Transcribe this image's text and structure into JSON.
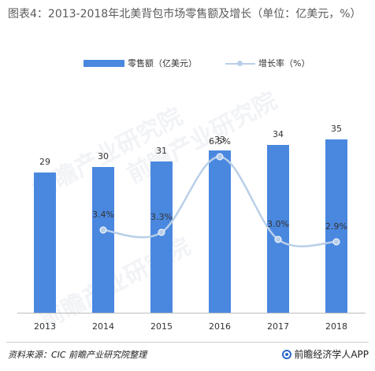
{
  "title": "图表4：2013-2018年北美背包市场零售额及增长（单位：亿美元，%）",
  "legend": {
    "bar_label": "零售额（亿美元）",
    "line_label": "增长率（%）"
  },
  "footer": {
    "source": "资料来源：CIC 前瞻产业研究院整理",
    "brand": "前瞻经济学人APP"
  },
  "watermarks": [
    "前瞻产业研究院",
    "前瞻产业研究院",
    "前瞻产业研究院"
  ],
  "colors": {
    "bar": "#4a88e0",
    "line": "#b9cfe8",
    "text": "#333333"
  },
  "chart_data": {
    "type": "bar",
    "categories": [
      "2013",
      "2014",
      "2015",
      "2016",
      "2017",
      "2018"
    ],
    "series": [
      {
        "name": "零售额（亿美元）",
        "type": "bar",
        "values": [
          29,
          30,
          31,
          33,
          34,
          35
        ],
        "labels": [
          "29",
          "30",
          "31",
          "33",
          "34",
          "35"
        ]
      },
      {
        "name": "增长率（%）",
        "type": "line",
        "smooth": true,
        "values": [
          null,
          3.4,
          3.3,
          6.5,
          3.0,
          2.9
        ],
        "labels": [
          "",
          "3.4%",
          "3.3%",
          "6.5%",
          "3.0%",
          "2.9%"
        ]
      }
    ],
    "ylim": [
      0,
      40
    ],
    "y2lim": [
      0,
      10
    ],
    "grid": false,
    "legend_position": "top"
  }
}
